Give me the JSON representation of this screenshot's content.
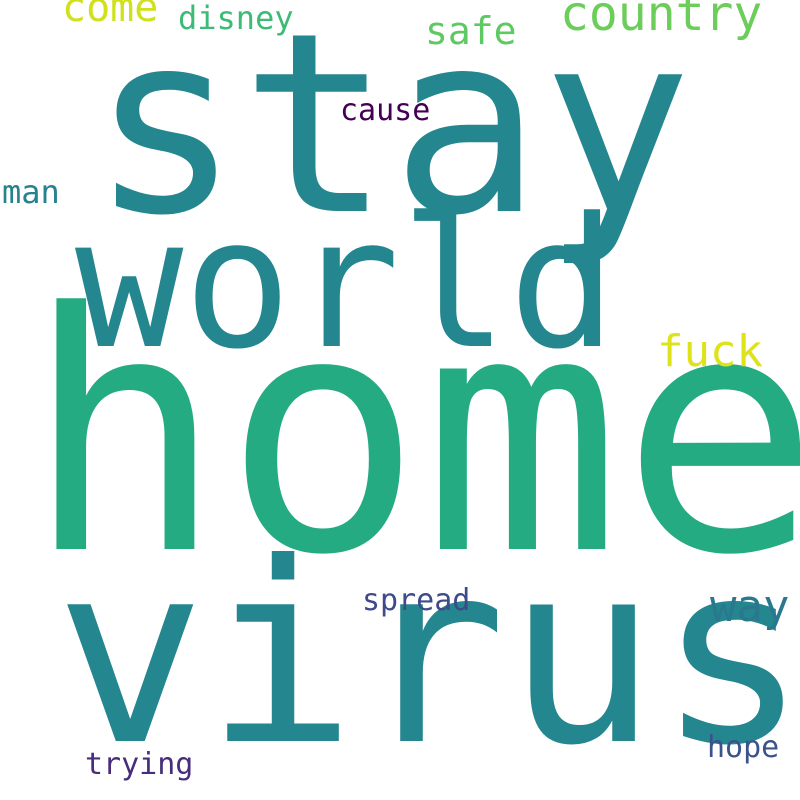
{
  "wordcloud": {
    "words": {
      "stay": {
        "text": "stay",
        "color": "#24868e"
      },
      "home": {
        "text": "home",
        "color": "#25ab82"
      },
      "virus": {
        "text": "virus",
        "color": "#24868e"
      },
      "world": {
        "text": "world",
        "color": "#24868e"
      },
      "country": {
        "text": "country",
        "color": "#6ccd5a"
      },
      "come": {
        "text": "come",
        "color": "#d0e11c"
      },
      "disney": {
        "text": "disney",
        "color": "#3bbb75"
      },
      "safe": {
        "text": "safe",
        "color": "#5ec962"
      },
      "cause": {
        "text": "cause",
        "color": "#440154"
      },
      "man": {
        "text": "man",
        "color": "#26828e"
      },
      "fuck": {
        "text": "fuck",
        "color": "#dde318"
      },
      "way": {
        "text": "way",
        "color": "#2a788e"
      },
      "spread": {
        "text": "spread",
        "color": "#3e4a89"
      },
      "hope": {
        "text": "hope",
        "color": "#3b528b"
      },
      "trying": {
        "text": "trying",
        "color": "#472d7b"
      }
    },
    "background": "#ffffff"
  }
}
